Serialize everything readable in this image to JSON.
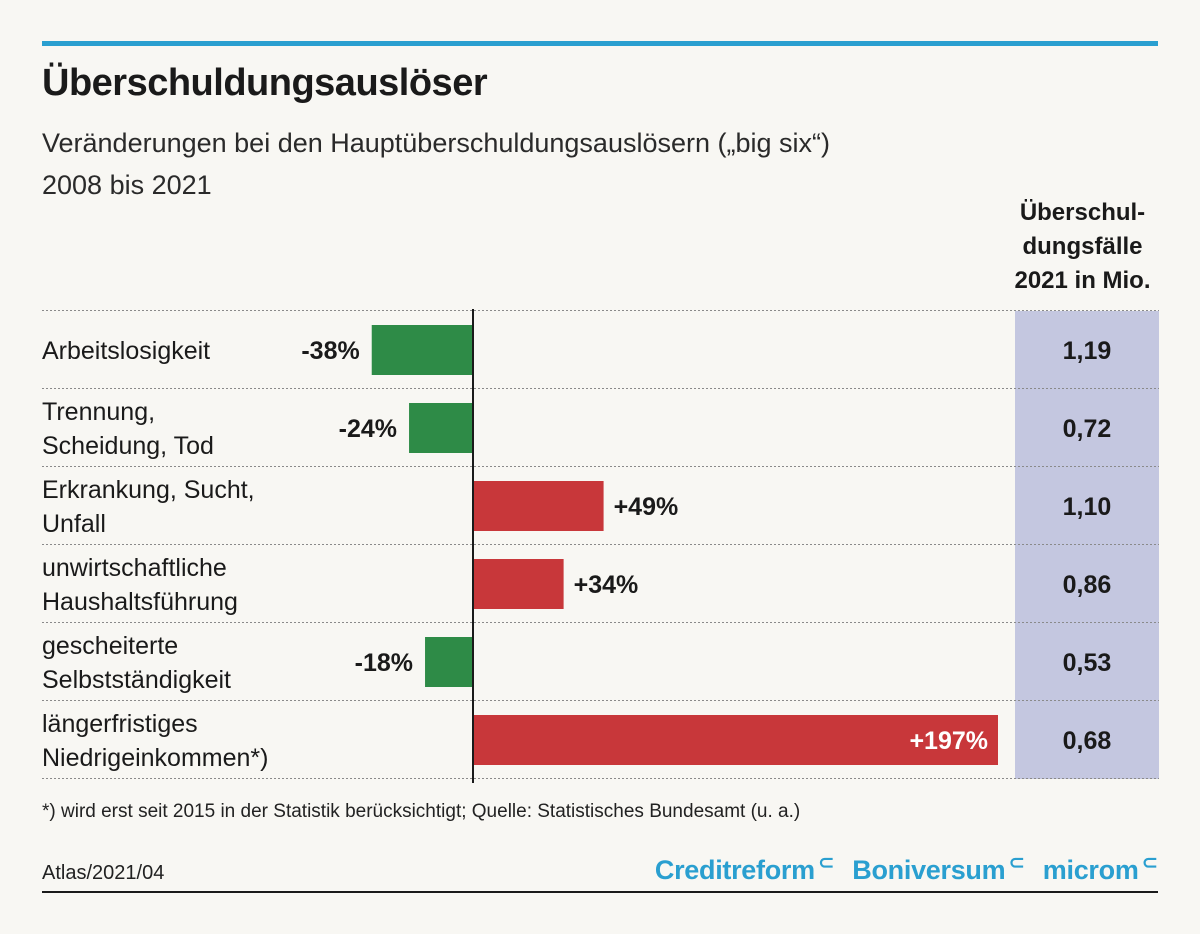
{
  "header": {
    "title": "Überschuldungsauslöser",
    "subtitle_line1": "Veränderungen bei den Hauptüberschuldungsauslösern („big six“)",
    "subtitle_line2": "2008 bis 2021"
  },
  "column_header": {
    "line1": "Überschul-",
    "line2": "dungsfälle",
    "line3": "2021 in Mio."
  },
  "colors": {
    "accent": "#2a9fd0",
    "negative": "#2e8b47",
    "positive": "#c8373a",
    "column_bg": "#c4c7e0"
  },
  "chart_data": {
    "type": "bar",
    "orientation": "horizontal",
    "categories": [
      [
        "Arbeitslosigkeit"
      ],
      [
        "Trennung,",
        "Scheidung, Tod"
      ],
      [
        "Erkrankung, Sucht,",
        "Unfall"
      ],
      [
        "unwirtschaftliche",
        "Haushaltsführung"
      ],
      [
        "gescheiterte",
        "Selbstständigkeit"
      ],
      [
        "längerfristiges",
        "Niedrigeinkommen*)"
      ]
    ],
    "values": [
      -38,
      -24,
      49,
      34,
      -18,
      197
    ],
    "value_labels": [
      "-38%",
      "-24%",
      "+49%",
      "+34%",
      "-18%",
      "+197%"
    ],
    "cases_2021_mio": [
      "1,19",
      "0,72",
      "1,10",
      "0,86",
      "0,53",
      "0,68"
    ],
    "unit": "%",
    "xlim": [
      -38,
      197
    ]
  },
  "footnote": "*) wird erst seit 2015 in der Statistik berücksichtigt; Quelle: Statistisches Bundesamt (u. a.)",
  "footer": {
    "source_code": "Atlas/2021/04",
    "logos": [
      "Creditreform",
      "Boniversum",
      "microm"
    ]
  }
}
